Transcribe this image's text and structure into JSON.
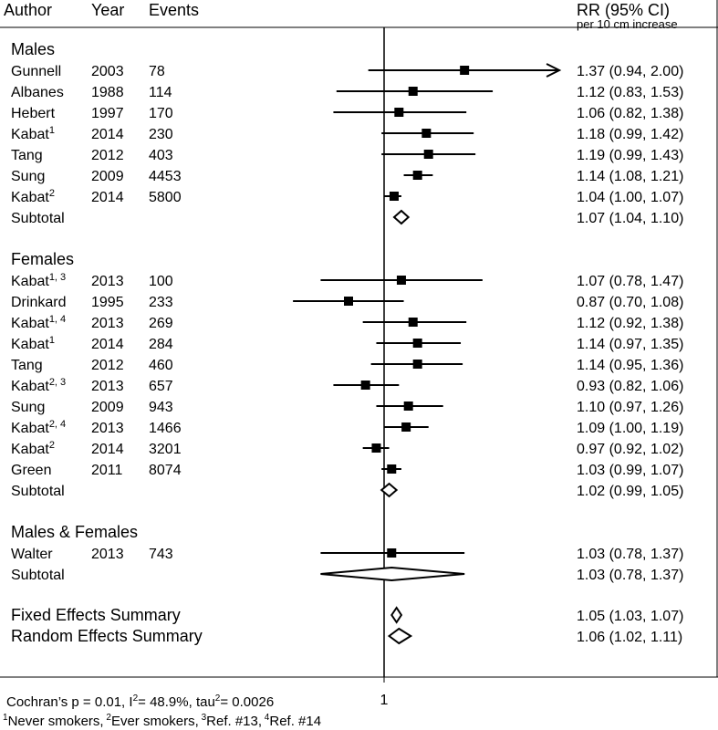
{
  "chart_data": {
    "type": "forest",
    "headers": {
      "author": "Author",
      "year": "Year",
      "events": "Events",
      "rr": "RR (95% CI)",
      "rr_sub": "per 10 cm increase"
    },
    "x_tick_label": "1",
    "null_value": 1,
    "xlim": [
      0.58,
      2.0
    ],
    "groups": [
      {
        "name": "Males",
        "studies": [
          {
            "author": "Gunnell",
            "sup": "",
            "year": "2003",
            "events": "78",
            "rr": 1.37,
            "lo": 0.94,
            "hi": 2.0,
            "ci_text": "1.37 (0.94, 2.00)",
            "arrow": true
          },
          {
            "author": "Albanes",
            "sup": "",
            "year": "1988",
            "events": "114",
            "rr": 1.12,
            "lo": 0.83,
            "hi": 1.53,
            "ci_text": "1.12 (0.83, 1.53)"
          },
          {
            "author": "Hebert",
            "sup": "",
            "year": "1997",
            "events": "170",
            "rr": 1.06,
            "lo": 0.82,
            "hi": 1.38,
            "ci_text": "1.06 (0.82, 1.38)"
          },
          {
            "author": "Kabat",
            "sup": "1",
            "year": "2014",
            "events": "230",
            "rr": 1.18,
            "lo": 0.99,
            "hi": 1.42,
            "ci_text": "1.18 (0.99, 1.42)"
          },
          {
            "author": "Tang",
            "sup": "",
            "year": "2012",
            "events": "403",
            "rr": 1.19,
            "lo": 0.99,
            "hi": 1.43,
            "ci_text": "1.19 (0.99, 1.43)"
          },
          {
            "author": "Sung",
            "sup": "",
            "year": "2009",
            "events": "4453",
            "rr": 1.14,
            "lo": 1.08,
            "hi": 1.21,
            "ci_text": "1.14 (1.08, 1.21)"
          },
          {
            "author": "Kabat",
            "sup": "2",
            "year": "2014",
            "events": "5800",
            "rr": 1.04,
            "lo": 1.0,
            "hi": 1.07,
            "ci_text": "1.04 (1.00, 1.07)"
          }
        ],
        "subtotal": {
          "label": "Subtotal",
          "rr": 1.07,
          "lo": 1.04,
          "hi": 1.1,
          "ci_text": "1.07 (1.04, 1.10)"
        }
      },
      {
        "name": "Females",
        "studies": [
          {
            "author": "Kabat",
            "sup": "1, 3",
            "year": "2013",
            "events": "100",
            "rr": 1.07,
            "lo": 0.78,
            "hi": 1.47,
            "ci_text": "1.07 (0.78, 1.47)"
          },
          {
            "author": "Drinkard",
            "sup": "",
            "year": "1995",
            "events": "233",
            "rr": 0.87,
            "lo": 0.7,
            "hi": 1.08,
            "ci_text": "0.87 (0.70, 1.08)"
          },
          {
            "author": "Kabat",
            "sup": "1, 4",
            "year": "2013",
            "events": "269",
            "rr": 1.12,
            "lo": 0.92,
            "hi": 1.38,
            "ci_text": "1.12 (0.92, 1.38)"
          },
          {
            "author": "Kabat",
            "sup": "1",
            "year": "2014",
            "events": "284",
            "rr": 1.14,
            "lo": 0.97,
            "hi": 1.35,
            "ci_text": "1.14 (0.97, 1.35)"
          },
          {
            "author": "Tang",
            "sup": "",
            "year": "2012",
            "events": "460",
            "rr": 1.14,
            "lo": 0.95,
            "hi": 1.36,
            "ci_text": "1.14 (0.95, 1.36)"
          },
          {
            "author": "Kabat",
            "sup": "2, 3",
            "year": "2013",
            "events": "657",
            "rr": 0.93,
            "lo": 0.82,
            "hi": 1.06,
            "ci_text": "0.93 (0.82, 1.06)"
          },
          {
            "author": "Sung",
            "sup": "",
            "year": "2009",
            "events": "943",
            "rr": 1.1,
            "lo": 0.97,
            "hi": 1.26,
            "ci_text": "1.10 (0.97, 1.26)"
          },
          {
            "author": "Kabat",
            "sup": "2, 4",
            "year": "2013",
            "events": "1466",
            "rr": 1.09,
            "lo": 1.0,
            "hi": 1.19,
            "ci_text": "1.09 (1.00, 1.19)"
          },
          {
            "author": "Kabat",
            "sup": "2",
            "year": "2014",
            "events": "3201",
            "rr": 0.97,
            "lo": 0.92,
            "hi": 1.02,
            "ci_text": "0.97 (0.92, 1.02)"
          },
          {
            "author": "Green",
            "sup": "",
            "year": "2011",
            "events": "8074",
            "rr": 1.03,
            "lo": 0.99,
            "hi": 1.07,
            "ci_text": "1.03 (0.99, 1.07)"
          }
        ],
        "subtotal": {
          "label": "Subtotal",
          "rr": 1.02,
          "lo": 0.99,
          "hi": 1.05,
          "ci_text": "1.02 (0.99, 1.05)"
        }
      },
      {
        "name": "Males & Females",
        "studies": [
          {
            "author": "Walter",
            "sup": "",
            "year": "2013",
            "events": "743",
            "rr": 1.03,
            "lo": 0.78,
            "hi": 1.37,
            "ci_text": "1.03 (0.78, 1.37)"
          }
        ],
        "subtotal": {
          "label": "Subtotal",
          "rr": 1.03,
          "lo": 0.78,
          "hi": 1.37,
          "ci_text": "1.03 (0.78, 1.37)"
        }
      }
    ],
    "summaries": [
      {
        "label": "Fixed Effects Summary",
        "rr": 1.05,
        "lo": 1.03,
        "hi": 1.07,
        "ci_text": "1.05 (1.03, 1.07)"
      },
      {
        "label": "Random Effects Summary",
        "rr": 1.06,
        "lo": 1.02,
        "hi": 1.11,
        "ci_text": "1.06 (1.02, 1.11)"
      }
    ],
    "heterogeneity": {
      "p_label": "Cochran’s p = 0.01,",
      "i2_prefix": "I",
      "i2_sup": "2",
      "i2_value": "= 48.9%,",
      "tau_prefix": "tau",
      "tau_sup": "2",
      "tau_value": "= 0.0026"
    },
    "footnotes": [
      {
        "sup": "1",
        "text": "Never smokers,"
      },
      {
        "sup": "2",
        "text": "Ever smokers,"
      },
      {
        "sup": "3",
        "text": "Ref. #13,"
      },
      {
        "sup": "4",
        "text": "Ref. #14"
      }
    ]
  }
}
